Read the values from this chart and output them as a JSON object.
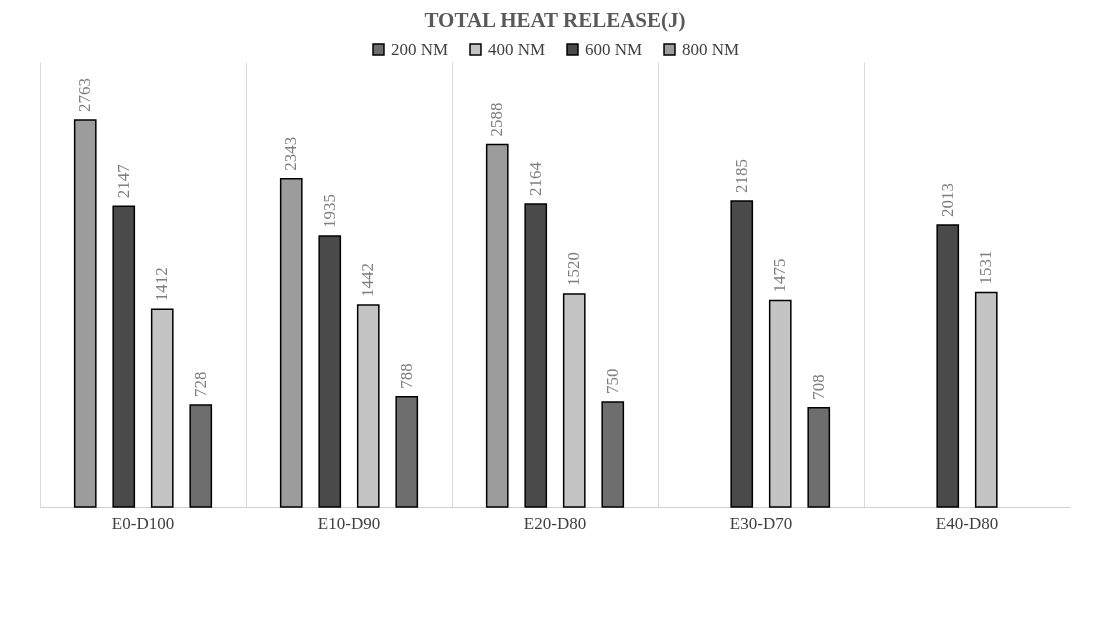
{
  "chart_data": {
    "type": "bar",
    "title": "TOTAL HEAT RELEASE(J)",
    "categories": [
      "E0-D100",
      "E10-D90",
      "E20-D80",
      "E30-D70",
      "E40-D80"
    ],
    "series": [
      {
        "name": "200 NM",
        "color": "#6e6e6e",
        "values": [
          728,
          788,
          750,
          708,
          null
        ]
      },
      {
        "name": "400 NM",
        "color": "#c4c4c4",
        "values": [
          1412,
          1442,
          1520,
          1475,
          1531
        ]
      },
      {
        "name": "600 NM",
        "color": "#4a4a4a",
        "values": [
          2147,
          1935,
          2164,
          2185,
          2013
        ]
      },
      {
        "name": "800 NM",
        "color": "#9c9c9c",
        "values": [
          2763,
          2343,
          2588,
          null,
          null
        ]
      }
    ],
    "data_labels": true,
    "grid": "x",
    "legend": "top"
  }
}
